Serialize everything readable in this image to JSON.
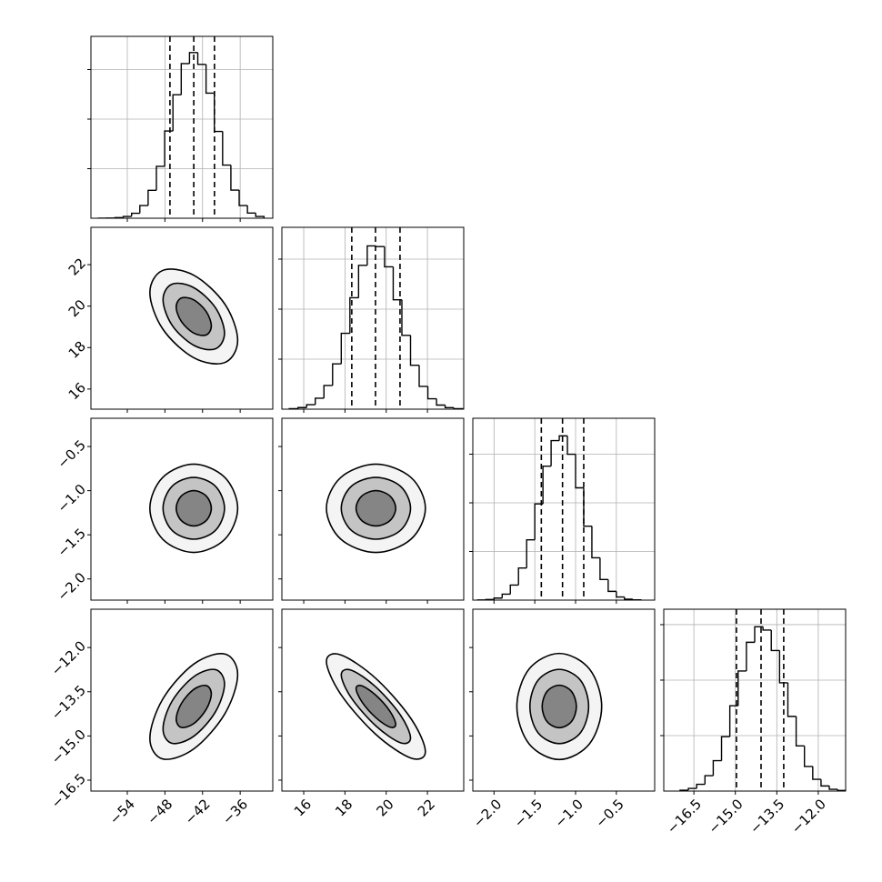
{
  "chart_data": [
    {
      "type": "histogram",
      "color": "#000000",
      "grid": true,
      "bins": [
        -58.6,
        -57.28,
        -55.96,
        -54.64,
        -53.32,
        -52.0,
        -50.68,
        -49.36,
        -48.04,
        -46.72,
        -45.4,
        -44.08,
        -42.76,
        -41.44,
        -40.12,
        -38.8,
        -37.48,
        -36.16,
        -34.84,
        -33.52,
        -32.2
      ],
      "values": [
        1,
        2,
        6,
        18,
        50,
        128,
        282,
        524,
        880,
        1246,
        1560,
        1672,
        1552,
        1262,
        876,
        536,
        284,
        128,
        52,
        18
      ],
      "quantiles": [
        -47.2,
        -43.4,
        -40.1
      ],
      "xlim": [
        -59.8,
        -30.8
      ],
      "ylim": [
        0,
        1835
      ],
      "xticks": [
        -54,
        -48,
        -42,
        -36
      ],
      "yticks": [
        500,
        1000,
        1500
      ]
    },
    {
      "type": "contour",
      "line_color": "#000000",
      "fills": [
        "#f4f4f4",
        "#c4c4c4",
        "#858585"
      ],
      "xlim": [
        -59.8,
        -30.8
      ],
      "ylim": [
        15.03,
        23.8
      ],
      "xticks": [
        -54,
        -48,
        -42,
        -36
      ],
      "yticks": [
        16,
        18,
        20,
        22
      ],
      "contours": [
        {
          "x": [
            -36.4,
            -38.45,
            -43.4,
            -48.35,
            -50.4,
            -48.35,
            -43.4,
            -38.45
          ],
          "y": [
            18.35,
            20.1,
            21.49,
            21.72,
            20.65,
            18.9,
            17.51,
            17.28
          ]
        },
        {
          "x": [
            -38.5,
            -39.94,
            -43.4,
            -46.86,
            -48.3,
            -46.86,
            -43.4,
            -39.94
          ],
          "y": [
            18.69,
            19.92,
            20.89,
            21.06,
            20.31,
            19.08,
            18.11,
            17.94
          ]
        },
        {
          "x": [
            -40.6,
            -41.42,
            -43.4,
            -45.38,
            -46.2,
            -45.38,
            -43.4,
            -41.42
          ],
          "y": [
            19.04,
            19.74,
            20.3,
            20.39,
            19.96,
            19.26,
            18.7,
            18.61
          ]
        }
      ]
    },
    {
      "type": "histogram",
      "color": "#000000",
      "grid": true,
      "bins": [
        15.3,
        15.72,
        16.14,
        16.56,
        16.98,
        17.4,
        17.82,
        18.24,
        18.66,
        19.08,
        19.5,
        19.92,
        20.34,
        20.76,
        21.18,
        21.6,
        22.02,
        22.44,
        22.86,
        23.28,
        23.7
      ],
      "values": [
        5,
        16,
        45,
        110,
        237,
        453,
        758,
        1114,
        1438,
        1632,
        1625,
        1423,
        1094,
        738,
        439,
        228,
        104,
        41,
        15,
        5
      ],
      "quantiles": [
        18.33,
        19.48,
        20.67
      ],
      "xlim": [
        14.94,
        23.76
      ],
      "ylim": [
        0,
        1818
      ],
      "xticks": [
        16,
        18,
        20,
        22
      ],
      "yticks": [
        500,
        1000,
        1500
      ]
    },
    {
      "type": "contour",
      "line_color": "#000000",
      "fills": [
        "#f4f4f4",
        "#c4c4c4",
        "#858585"
      ],
      "xlim": [
        -59.8,
        -30.8
      ],
      "ylim": [
        -2.24,
        -0.18
      ],
      "xticks": [
        -54,
        -48,
        -42,
        -36
      ],
      "yticks": [
        {
          "value": -2,
          "label": "−2.0"
        },
        {
          "value": -1.5,
          "label": "−1.5"
        },
        {
          "value": -1,
          "label": "−1.0"
        },
        {
          "value": -0.5,
          "label": "−0.5"
        }
      ],
      "contours": [
        {
          "x": [
            -36.4,
            -38.45,
            -43.4,
            -48.35,
            -50.4,
            -48.35,
            -43.4,
            -38.45
          ],
          "y": [
            -1.2,
            -0.85,
            -0.7,
            -0.85,
            -1.2,
            -1.55,
            -1.7,
            -1.55
          ]
        },
        {
          "x": [
            -38.5,
            -39.94,
            -43.4,
            -46.86,
            -48.3,
            -46.86,
            -43.4,
            -39.94
          ],
          "y": [
            -1.2,
            -0.95,
            -0.85,
            -0.95,
            -1.2,
            -1.45,
            -1.55,
            -1.45
          ]
        },
        {
          "x": [
            -40.6,
            -41.42,
            -43.4,
            -45.38,
            -46.2,
            -45.38,
            -43.4,
            -41.42
          ],
          "y": [
            -1.2,
            -1.06,
            -1.0,
            -1.06,
            -1.2,
            -1.34,
            -1.4,
            -1.34
          ]
        }
      ]
    },
    {
      "type": "contour",
      "line_color": "#000000",
      "fills": [
        "#f4f4f4",
        "#c4c4c4",
        "#858585"
      ],
      "xlim": [
        14.94,
        23.76
      ],
      "ylim": [
        -2.24,
        -0.18
      ],
      "xticks": [
        16,
        18,
        20,
        22
      ],
      "yticks": [
        -2,
        -1.5,
        -1,
        -0.5
      ],
      "contours": [
        {
          "x": [
            21.9,
            21.2,
            19.5,
            17.8,
            17.1,
            17.8,
            19.5,
            21.2
          ],
          "y": [
            -1.2,
            -0.85,
            -0.7,
            -0.85,
            -1.2,
            -1.55,
            -1.7,
            -1.55
          ]
        },
        {
          "x": [
            21.18,
            20.69,
            19.5,
            18.31,
            17.82,
            18.31,
            19.5,
            20.69
          ],
          "y": [
            -1.2,
            -0.95,
            -0.85,
            -0.95,
            -1.2,
            -1.45,
            -1.55,
            -1.45
          ]
        },
        {
          "x": [
            20.46,
            20.18,
            19.5,
            18.82,
            18.54,
            18.82,
            19.5,
            20.18
          ],
          "y": [
            -1.2,
            -1.06,
            -1.0,
            -1.06,
            -1.2,
            -1.34,
            -1.4,
            -1.34
          ]
        }
      ]
    },
    {
      "type": "histogram",
      "color": "#000000",
      "grid": true,
      "bins": [
        -2.2,
        -2.1,
        -2.0,
        -1.9,
        -1.8,
        -1.7,
        -1.6,
        -1.5,
        -1.4,
        -1.3,
        -1.2,
        -1.1,
        -1.0,
        -0.9,
        -0.8,
        -0.7,
        -0.6,
        -0.5,
        -0.4,
        -0.3,
        -0.2
      ],
      "values": [
        2,
        6,
        21,
        61,
        155,
        330,
        620,
        989,
        1377,
        1639,
        1688,
        1499,
        1154,
        760,
        435,
        212,
        90,
        32,
        10,
        3
      ],
      "quantiles": [
        -1.42,
        -1.16,
        -0.9
      ],
      "xlim": [
        -2.26,
        -0.03
      ],
      "ylim": [
        0,
        1869
      ],
      "xticks": [
        -2,
        -1.5,
        -1,
        -0.5
      ],
      "yticks": [
        500,
        1000,
        1500
      ]
    },
    {
      "type": "contour",
      "line_color": "#000000",
      "fills": [
        "#f4f4f4",
        "#c4c4c4",
        "#858585"
      ],
      "xlim": [
        -59.8,
        -30.8
      ],
      "ylim": [
        -16.87,
        -10.7
      ],
      "xticks": [
        {
          "value": -54,
          "label": "−54"
        },
        {
          "value": -48,
          "label": "−48"
        },
        {
          "value": -42,
          "label": "−42"
        },
        {
          "value": -36,
          "label": "−36"
        }
      ],
      "yticks": [
        {
          "value": -16.5,
          "label": "−16.5"
        },
        {
          "value": -15,
          "label": "−15.0"
        },
        {
          "value": -13.5,
          "label": "−13.5"
        },
        {
          "value": -12,
          "label": "−12.0"
        }
      ],
      "contours": [
        {
          "x": [
            -36.4,
            -38.45,
            -43.4,
            -48.35,
            -50.4,
            -48.35,
            -43.4,
            -38.45
          ],
          "y": [
            -12.92,
            -12.22,
            -12.56,
            -13.75,
            -15.08,
            -15.78,
            -15.44,
            -14.25
          ]
        },
        {
          "x": [
            -38.5,
            -39.94,
            -43.4,
            -46.86,
            -48.3,
            -46.86,
            -43.4,
            -39.94
          ],
          "y": [
            -13.24,
            -12.75,
            -12.99,
            -13.82,
            -14.76,
            -15.25,
            -15.01,
            -14.18
          ]
        },
        {
          "x": [
            -40.6,
            -41.42,
            -43.4,
            -45.38,
            -46.2,
            -45.38,
            -43.4,
            -41.42
          ],
          "y": [
            -13.57,
            -13.29,
            -13.42,
            -13.9,
            -14.43,
            -14.71,
            -14.58,
            -14.1
          ]
        }
      ]
    },
    {
      "type": "contour",
      "line_color": "#000000",
      "fills": [
        "#f4f4f4",
        "#c4c4c4",
        "#858585"
      ],
      "xlim": [
        14.94,
        23.76
      ],
      "ylim": [
        -16.87,
        -10.7
      ],
      "xticks": [
        16,
        18,
        20,
        22
      ],
      "yticks": [
        -16.5,
        -15,
        -13.5,
        -12
      ],
      "contours": [
        {
          "x": [
            21.9,
            21.2,
            19.5,
            17.8,
            17.1,
            17.8,
            19.5,
            21.2
          ],
          "y": [
            -15.53,
            -14.41,
            -13.05,
            -12.25,
            -12.47,
            -13.59,
            -14.95,
            -15.75
          ]
        },
        {
          "x": [
            21.18,
            20.69,
            19.5,
            18.31,
            17.82,
            18.31,
            19.5,
            20.69
          ],
          "y": [
            -15.07,
            -14.29,
            -13.34,
            -12.77,
            -12.93,
            -13.71,
            -14.66,
            -15.23
          ]
        },
        {
          "x": [
            20.46,
            20.18,
            19.5,
            18.82,
            18.54,
            18.82,
            19.5,
            20.18
          ],
          "y": [
            -14.61,
            -14.16,
            -13.62,
            -13.3,
            -13.39,
            -13.84,
            -14.38,
            -14.7
          ]
        }
      ]
    },
    {
      "type": "contour",
      "line_color": "#000000",
      "fills": [
        "#f4f4f4",
        "#c4c4c4",
        "#858585"
      ],
      "xlim": [
        -2.26,
        -0.03
      ],
      "ylim": [
        -16.87,
        -10.7
      ],
      "xticks": [
        {
          "value": -2,
          "label": "−2.0"
        },
        {
          "value": -1.5,
          "label": "−1.5"
        },
        {
          "value": -1,
          "label": "−1.0"
        },
        {
          "value": -0.5,
          "label": "−0.5"
        }
      ],
      "yticks": [
        -16.5,
        -15,
        -13.5,
        -12
      ],
      "contours": [
        {
          "x": [
            -0.68,
            -0.83,
            -1.2,
            -1.57,
            -1.72,
            -1.57,
            -1.2,
            -0.83
          ],
          "y": [
            -14.0,
            -12.73,
            -12.2,
            -12.73,
            -14.0,
            -15.27,
            -15.8,
            -15.27
          ]
        },
        {
          "x": [
            -0.84,
            -0.94,
            -1.2,
            -1.46,
            -1.56,
            -1.46,
            -1.2,
            -0.94
          ],
          "y": [
            -14.0,
            -13.11,
            -12.74,
            -13.11,
            -14.0,
            -14.89,
            -15.26,
            -14.89
          ]
        },
        {
          "x": [
            -0.99,
            -1.05,
            -1.2,
            -1.35,
            -1.41,
            -1.35,
            -1.2,
            -1.05
          ],
          "y": [
            -14.0,
            -13.49,
            -13.28,
            -13.49,
            -14.0,
            -14.51,
            -14.72,
            -14.51
          ]
        }
      ]
    },
    {
      "type": "histogram",
      "color": "#000000",
      "grid": true,
      "bins": [
        -17.0,
        -16.7,
        -16.4,
        -16.1,
        -15.8,
        -15.5,
        -15.2,
        -14.9,
        -14.6,
        -14.3,
        -14.0,
        -13.7,
        -13.4,
        -13.1,
        -12.8,
        -12.5,
        -12.2,
        -11.9,
        -11.6,
        -11.3,
        -11.0
      ],
      "values": [
        8,
        24,
        61,
        139,
        274,
        490,
        769,
        1082,
        1341,
        1481,
        1451,
        1267,
        976,
        673,
        407,
        222,
        106,
        46,
        16,
        6
      ],
      "quantiles": [
        -14.96,
        -14.07,
        -13.25
      ],
      "xlim": [
        -17.59,
        -11.01
      ],
      "ylim": [
        0,
        1639
      ],
      "xticks": [
        {
          "value": -16.5,
          "label": "−16.5"
        },
        {
          "value": -15,
          "label": "−15.0"
        },
        {
          "value": -13.5,
          "label": "−13.5"
        },
        {
          "value": -12,
          "label": "−12.0"
        }
      ],
      "yticks": [
        500,
        1000,
        1500
      ]
    }
  ]
}
